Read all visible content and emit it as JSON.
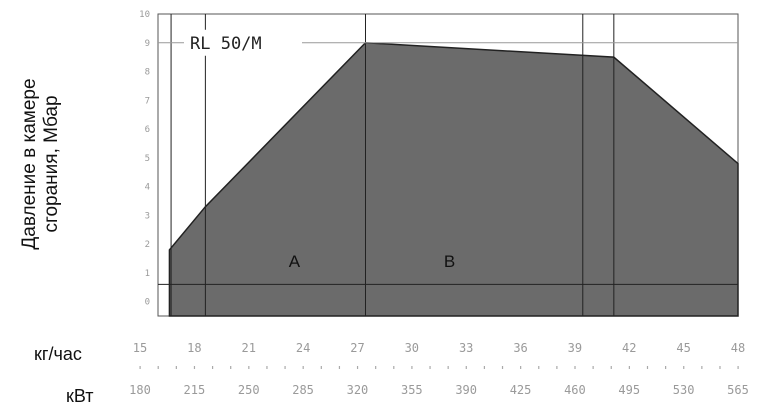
{
  "chart_data": {
    "type": "area",
    "title": "",
    "ylabel_line1": "Давление в камере",
    "ylabel_line2": "сгорания, Мбар",
    "model_label": "RL 50/M",
    "xlim": [
      14.5,
      50
    ],
    "ylim": [
      -0.5,
      10
    ],
    "y_ticks": [
      "0",
      "1",
      "2",
      "3",
      "4",
      "5",
      "6",
      "7",
      "8",
      "9",
      "10"
    ],
    "x_row_kg": {
      "label": "кг/час",
      "ticks": [
        "15",
        "18",
        "21",
        "24",
        "27",
        "30",
        "33",
        "36",
        "39",
        "42",
        "45",
        "48"
      ]
    },
    "x_row_kw": {
      "label": "кВт",
      "ticks": [
        "180",
        "215",
        "250",
        "285",
        "320",
        "355",
        "390",
        "425",
        "460",
        "495",
        "530",
        "565"
      ]
    },
    "series": [
      {
        "x": [
          15.2,
          17.4,
          27.2,
          42.4,
          50
        ],
        "y": [
          1.8,
          3.3,
          9.0,
          8.5,
          4.8
        ]
      }
    ],
    "vertical_lines_x": [
      15.3,
      17.4,
      27.2,
      40.5,
      42.4
    ],
    "horizontal_line_y": 0.6,
    "area_labels": [
      {
        "text": "A",
        "x": 22.5,
        "y": 1.2
      },
      {
        "text": "B",
        "x": 32.0,
        "y": 1.2
      }
    ],
    "fill_color": "#6b6b6b",
    "grid": false
  }
}
